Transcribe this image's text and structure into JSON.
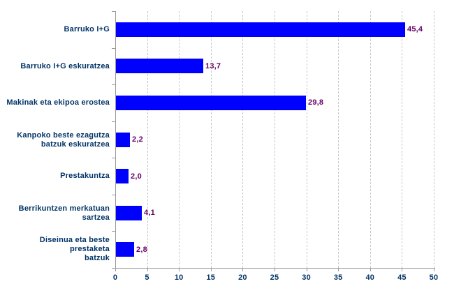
{
  "chart_data": {
    "type": "bar",
    "orientation": "horizontal",
    "title": "",
    "xlabel": "",
    "ylabel": "",
    "categories": [
      "Barruko I+G",
      "Barruko I+G eskuratzea",
      "Makinak eta ekipoa erostea",
      "Kanpoko beste ezagutza\nbatzuk eskuratzea",
      "Prestakuntza",
      "Berrikuntzen merkatuan\nsartzea",
      "Diseinua eta beste prestaketa\nbatzuk"
    ],
    "values": [
      45.4,
      13.7,
      29.8,
      2.2,
      2.0,
      4.1,
      2.8
    ],
    "value_labels": [
      "45,4",
      "13,7",
      "29,8",
      "2,2",
      "2,0",
      "4,1",
      "2,8"
    ],
    "x_ticks": [
      0,
      5,
      10,
      15,
      20,
      25,
      30,
      35,
      40,
      45,
      50
    ],
    "xlim": [
      0,
      50
    ],
    "grid": "vertical-dashed",
    "legend": "none",
    "colors": {
      "bar": "#0000ff",
      "category_label": "#003366",
      "value_label": "#660066",
      "axis": "#9a9a9a",
      "gridline": "#c8c8c8",
      "background": "#ffffff"
    }
  }
}
